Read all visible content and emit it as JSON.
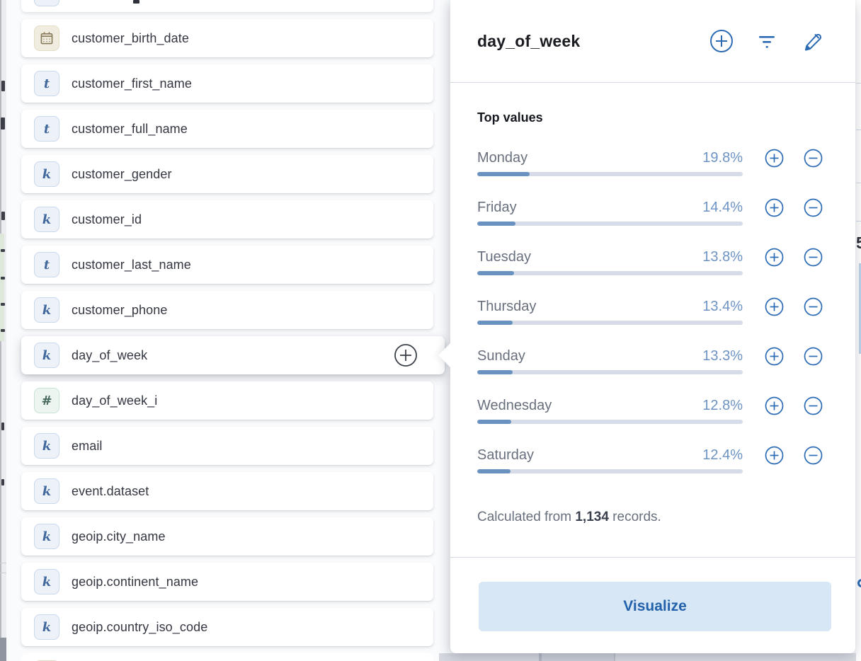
{
  "field_list": {
    "items": [
      {
        "name": "customer_birth_date",
        "type": "date",
        "glyph": ""
      },
      {
        "name": "customer_first_name",
        "type": "text",
        "glyph": "t"
      },
      {
        "name": "customer_full_name",
        "type": "text",
        "glyph": "t"
      },
      {
        "name": "customer_gender",
        "type": "keyword",
        "glyph": "k"
      },
      {
        "name": "customer_id",
        "type": "keyword",
        "glyph": "k"
      },
      {
        "name": "customer_last_name",
        "type": "text",
        "glyph": "t"
      },
      {
        "name": "customer_phone",
        "type": "keyword",
        "glyph": "k"
      },
      {
        "name": "day_of_week",
        "type": "keyword",
        "glyph": "k",
        "selected": true
      },
      {
        "name": "day_of_week_i",
        "type": "number",
        "glyph": "#"
      },
      {
        "name": "email",
        "type": "keyword",
        "glyph": "k"
      },
      {
        "name": "event.dataset",
        "type": "keyword",
        "glyph": "k"
      },
      {
        "name": "geoip.city_name",
        "type": "keyword",
        "glyph": "k"
      },
      {
        "name": "geoip.continent_name",
        "type": "keyword",
        "glyph": "k"
      },
      {
        "name": "geoip.country_iso_code",
        "type": "keyword",
        "glyph": "k"
      }
    ]
  },
  "popover": {
    "title": "day_of_week",
    "header_icons": [
      "plus-circle",
      "filter",
      "pencil"
    ],
    "top_values_heading": "Top values",
    "values": [
      {
        "label": "Monday",
        "pct": "19.8%",
        "pct_num": 19.8
      },
      {
        "label": "Friday",
        "pct": "14.4%",
        "pct_num": 14.4
      },
      {
        "label": "Tuesday",
        "pct": "13.8%",
        "pct_num": 13.8
      },
      {
        "label": "Thursday",
        "pct": "13.4%",
        "pct_num": 13.4
      },
      {
        "label": "Sunday",
        "pct": "13.3%",
        "pct_num": 13.3
      },
      {
        "label": "Wednesday",
        "pct": "12.8%",
        "pct_num": 12.8
      },
      {
        "label": "Saturday",
        "pct": "12.4%",
        "pct_num": 12.4
      }
    ],
    "footer": {
      "prefix": "Calculated from ",
      "count": "1,134",
      "suffix": " records."
    },
    "visualize_label": "Visualize"
  },
  "background": {
    "right_fragment": "5"
  },
  "colors": {
    "icon_blue": "#2d6cb5",
    "bar_fill": "#6a92c0",
    "bar_track": "#d7dde8",
    "pct_text": "#6d93c5",
    "label_gray": "#69707d",
    "button_bg": "#d8e7f6",
    "button_text": "#2361ab"
  }
}
